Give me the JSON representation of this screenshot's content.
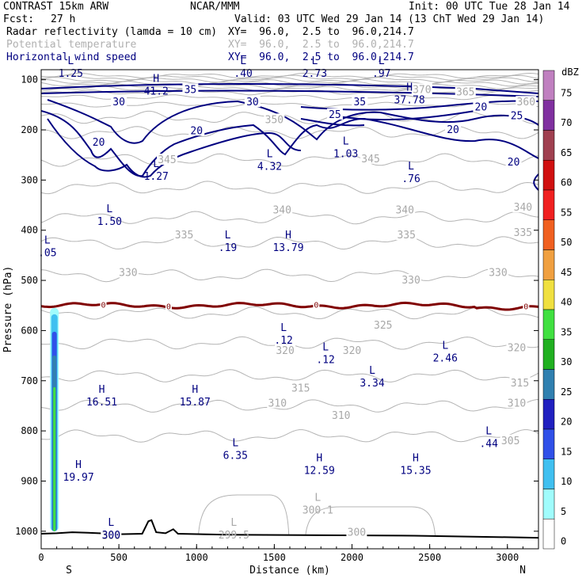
{
  "header": {
    "model": "CONTRAST 15km ARW",
    "org": "NCAR/MMM",
    "init": "Init: 00 UTC Tue 28 Jan 14",
    "fcst_label": "Fcst:",
    "fcst_value": "27 h",
    "valid": "Valid: 03 UTC Wed 29 Jan 14 (13 ChT Wed 29 Jan 14)",
    "fields": [
      {
        "name": "Radar reflectivity (lamda = 10 cm)",
        "xy": "XY=  96.0,  2.5 to  96.0,214.7",
        "color": "#000000"
      },
      {
        "name": "Potential temperature",
        "xy": "XY=  96.0,  2.5 to  96.0,214.7",
        "color": "#b0b0b0"
      },
      {
        "name": "Horizontal wind speed",
        "xy": "XY=  96.0,  2.5 to  96.0,214.7",
        "color": "#000080"
      }
    ]
  },
  "chart_data": {
    "type": "cross-section",
    "xlabel": "Distance (km)",
    "ylabel": "Pressure (hPa)",
    "xlim": [
      0,
      3200
    ],
    "ylim": [
      1035,
      80
    ],
    "x_ticks": [
      "0",
      "500",
      "1000",
      "1500",
      "2000",
      "2500",
      "3000"
    ],
    "y_ticks": [
      "100",
      "200",
      "300",
      "400",
      "500",
      "600",
      "700",
      "800",
      "900",
      "1000"
    ],
    "x_end_labels": {
      "left": "S",
      "right": "N"
    },
    "colorbar": {
      "unit": "dBZ",
      "levels": [
        "0",
        "5",
        "10",
        "15",
        "20",
        "25",
        "30",
        "35",
        "40",
        "45",
        "50",
        "55",
        "60",
        "65",
        "70",
        "75"
      ],
      "colors": [
        "#ffffff",
        "#a0fcfc",
        "#40c0f0",
        "#3050e8",
        "#2020c0",
        "#3080b0",
        "#20b020",
        "#40e040",
        "#f0e040",
        "#f0a040",
        "#f06020",
        "#f02020",
        "#d01010",
        "#a04050",
        "#8030a0",
        "#c080c0"
      ]
    },
    "theta_labels": [
      {
        "text": "370",
        "x": 2450,
        "p": 120
      },
      {
        "text": "365",
        "x": 2730,
        "p": 125
      },
      {
        "text": "360",
        "x": 3120,
        "p": 145
      },
      {
        "text": "350",
        "x": 1500,
        "p": 180
      },
      {
        "text": "345",
        "x": 810,
        "p": 260
      },
      {
        "text": "345",
        "x": 2120,
        "p": 258
      },
      {
        "text": "340",
        "x": 1550,
        "p": 360
      },
      {
        "text": "340",
        "x": 2340,
        "p": 360
      },
      {
        "text": "340",
        "x": 3100,
        "p": 355
      },
      {
        "text": "335",
        "x": 920,
        "p": 410
      },
      {
        "text": "335",
        "x": 2350,
        "p": 410
      },
      {
        "text": "335",
        "x": 3100,
        "p": 405
      },
      {
        "text": "330",
        "x": 560,
        "p": 485
      },
      {
        "text": "330",
        "x": 2380,
        "p": 500
      },
      {
        "text": "330",
        "x": 2940,
        "p": 485
      },
      {
        "text": "325",
        "x": 2200,
        "p": 590
      },
      {
        "text": "320",
        "x": 1570,
        "p": 640
      },
      {
        "text": "320",
        "x": 2000,
        "p": 640
      },
      {
        "text": "320",
        "x": 3060,
        "p": 635
      },
      {
        "text": "315",
        "x": 1670,
        "p": 715
      },
      {
        "text": "315",
        "x": 3080,
        "p": 705
      },
      {
        "text": "310",
        "x": 1520,
        "p": 745
      },
      {
        "text": "310",
        "x": 1930,
        "p": 770
      },
      {
        "text": "310",
        "x": 3060,
        "p": 745
      },
      {
        "text": "305",
        "x": 3020,
        "p": 820
      },
      {
        "text": "300",
        "x": 450,
        "p": 1010
      },
      {
        "text": "300",
        "x": 2030,
        "p": 1003
      }
    ],
    "wind_labels": [
      {
        "text": "35",
        "x": 960,
        "p": 120
      },
      {
        "text": "30",
        "x": 500,
        "p": 145
      },
      {
        "text": "30",
        "x": 1360,
        "p": 145
      },
      {
        "text": "35",
        "x": 2050,
        "p": 145
      },
      {
        "text": "25",
        "x": 1890,
        "p": 170
      },
      {
        "text": "20",
        "x": 370,
        "p": 225
      },
      {
        "text": "20",
        "x": 1000,
        "p": 202
      },
      {
        "text": "20",
        "x": 2830,
        "p": 155
      },
      {
        "text": "25",
        "x": 3060,
        "p": 172
      },
      {
        "text": "20",
        "x": 2650,
        "p": 200
      },
      {
        "text": "20",
        "x": 3040,
        "p": 265
      }
    ],
    "extrema": [
      {
        "type": "L",
        "value": "1.25",
        "x": 190,
        "p": 85
      },
      {
        "type": "L",
        "value": ".40",
        "x": 1300,
        "p": 85
      },
      {
        "type": "L",
        "value": "2.73",
        "x": 1760,
        "p": 85
      },
      {
        "type": "L",
        "value": ".97",
        "x": 2190,
        "p": 85
      },
      {
        "type": "H",
        "value": "41.2",
        "x": 740,
        "p": 120
      },
      {
        "type": "H",
        "value": "37.78",
        "x": 2370,
        "p": 138
      },
      {
        "type": "L",
        "value": "1.03",
        "x": 1960,
        "p": 245
      },
      {
        "type": "L",
        "value": "4.32",
        "x": 1470,
        "p": 270
      },
      {
        "type": "L",
        "value": "1.27",
        "x": 740,
        "p": 290
      },
      {
        "type": "L",
        "value": ".76",
        "x": 2380,
        "p": 295
      },
      {
        "type": "L",
        "value": "1.50",
        "x": 440,
        "p": 380
      },
      {
        "type": "L",
        "value": ".05",
        "x": 40,
        "p": 442
      },
      {
        "type": "L",
        "value": ".19",
        "x": 1200,
        "p": 432
      },
      {
        "type": "H",
        "value": "13.79",
        "x": 1590,
        "p": 432
      },
      {
        "type": "L",
        "value": ".12",
        "x": 1560,
        "p": 617
      },
      {
        "type": "L",
        "value": ".12",
        "x": 1830,
        "p": 655
      },
      {
        "type": "L",
        "value": "2.46",
        "x": 2600,
        "p": 652
      },
      {
        "type": "L",
        "value": "3.34",
        "x": 2130,
        "p": 702
      },
      {
        "type": "H",
        "value": "16.51",
        "x": 390,
        "p": 740
      },
      {
        "type": "H",
        "value": "15.87",
        "x": 990,
        "p": 740
      },
      {
        "type": "L",
        "value": ".44",
        "x": 2880,
        "p": 823
      },
      {
        "type": "L",
        "value": "6.35",
        "x": 1250,
        "p": 846
      },
      {
        "type": "H",
        "value": "12.59",
        "x": 1790,
        "p": 876
      },
      {
        "type": "H",
        "value": "15.35",
        "x": 2410,
        "p": 876
      },
      {
        "type": "H",
        "value": "19.97",
        "x": 240,
        "p": 890
      },
      {
        "type": "L",
        "value": "300.1",
        "x": 1780,
        "p": 955
      },
      {
        "type": "L",
        "value": "300",
        "x": 450,
        "p": 1005
      },
      {
        "type": "L",
        "value": "299.5",
        "x": 1240,
        "p": 1005
      }
    ],
    "zero_line_labels": [
      {
        "text": "0",
        "x": 400,
        "p": 550
      },
      {
        "text": "0",
        "x": 820,
        "p": 553
      },
      {
        "text": "0",
        "x": 1770,
        "p": 550
      },
      {
        "text": "0",
        "x": 3120,
        "p": 553
      }
    ],
    "reflectivity_column": {
      "x_center": 85,
      "p_top": 555,
      "p_bottom": 1000,
      "max_dbz": 30
    }
  }
}
